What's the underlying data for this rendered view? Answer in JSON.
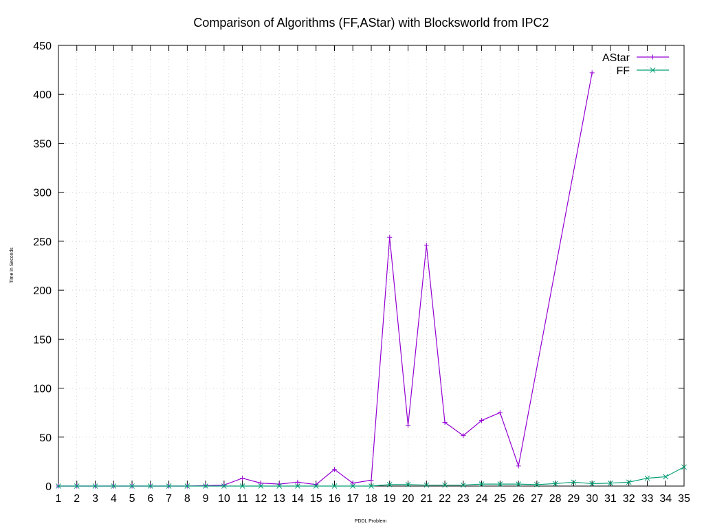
{
  "chart_data": {
    "type": "line",
    "title": "Comparison of Algorithms (FF,AStar) with Blocksworld from IPC2",
    "xlabel": "PDDL Problem",
    "ylabel": "Time in Seconds",
    "xlim": [
      1,
      35
    ],
    "ylim": [
      0,
      450
    ],
    "x_ticks": [
      1,
      2,
      3,
      4,
      5,
      6,
      7,
      8,
      9,
      10,
      11,
      12,
      13,
      14,
      15,
      16,
      17,
      18,
      19,
      20,
      21,
      22,
      23,
      24,
      25,
      26,
      27,
      28,
      29,
      30,
      31,
      32,
      33,
      34,
      35
    ],
    "y_ticks": [
      0,
      50,
      100,
      150,
      200,
      250,
      300,
      350,
      400,
      450
    ],
    "grid": true,
    "legend_position": "top-right",
    "series": [
      {
        "name": "AStar",
        "color": "#9400d3",
        "marker": "plus",
        "x": [
          1,
          2,
          3,
          4,
          5,
          6,
          7,
          8,
          9,
          10,
          11,
          12,
          13,
          14,
          15,
          16,
          17,
          18,
          19,
          20,
          21,
          22,
          23,
          24,
          25,
          26,
          30
        ],
        "values": [
          0,
          0,
          0,
          0,
          0,
          0,
          0,
          0,
          0.5,
          1,
          8,
          3,
          2,
          4,
          1.5,
          17,
          3,
          6,
          254,
          62,
          246,
          65,
          51.5,
          67,
          75,
          20.5,
          422
        ]
      },
      {
        "name": "FF",
        "color": "#009e73",
        "marker": "cross",
        "x": [
          1,
          2,
          3,
          4,
          5,
          6,
          7,
          8,
          9,
          10,
          11,
          12,
          13,
          14,
          15,
          16,
          17,
          18,
          19,
          20,
          21,
          22,
          23,
          24,
          25,
          26,
          27,
          28,
          29,
          30,
          31,
          32,
          33,
          34,
          35
        ],
        "values": [
          0,
          0,
          0,
          0,
          0,
          0,
          0,
          0,
          0,
          0,
          0,
          0,
          0,
          0,
          0,
          0,
          0,
          0,
          1.5,
          1.5,
          1,
          1,
          1,
          2,
          2,
          2,
          1.5,
          2.5,
          4,
          2.5,
          3,
          4,
          8,
          9.5,
          19.5
        ]
      }
    ]
  }
}
